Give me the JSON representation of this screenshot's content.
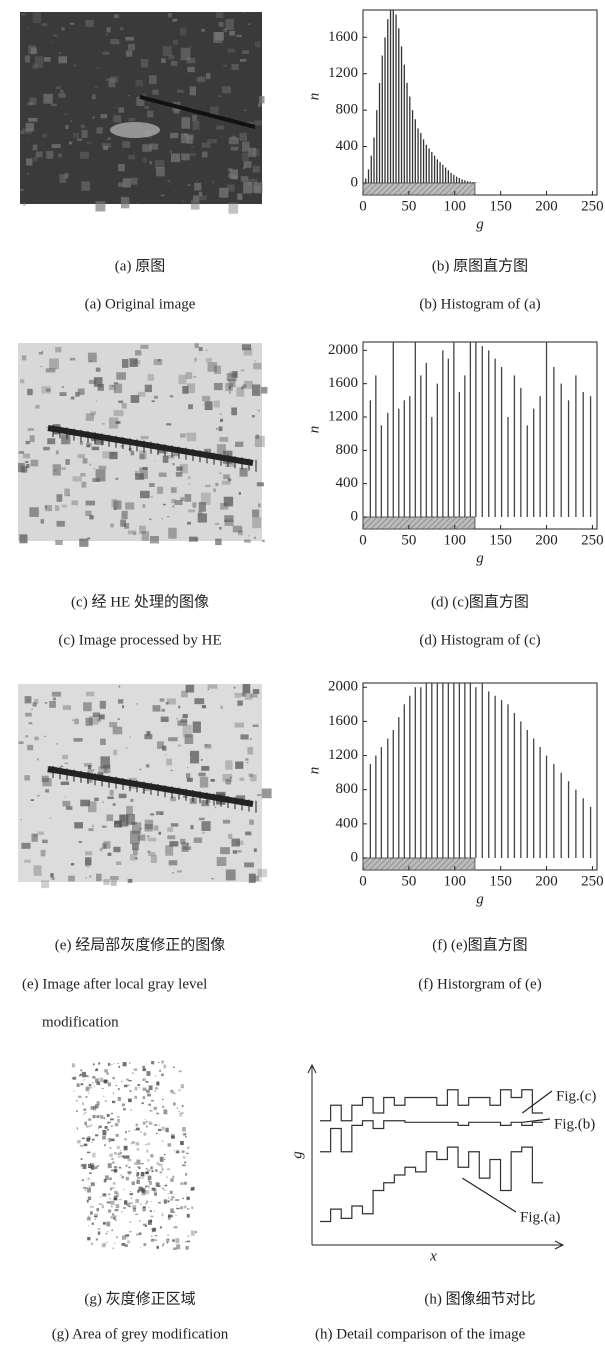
{
  "images": [
    {
      "caption_zh": "(a) 原图",
      "caption_en": "(a) Original image"
    },
    {
      "caption_zh": "(c) 经 HE 处理的图像",
      "caption_en": "(c) Image processed by HE"
    },
    {
      "caption_zh": "(e) 经局部灰度修正的图像",
      "caption_en": [
        "(e) Image after local gray level",
        "modification"
      ]
    },
    {
      "caption_zh": "(g) 灰度修正区域",
      "caption_en": "(g) Area of grey modification"
    }
  ],
  "chart_data": [
    {
      "type": "stem",
      "caption_zh": "(b) 原图直方图",
      "caption_en": "(b) Histogram of (a)",
      "xlabel": "g",
      "ylabel": "n",
      "color": "#333333",
      "x": [
        3,
        6,
        9,
        12,
        15,
        18,
        21,
        24,
        27,
        30,
        33,
        36,
        39,
        42,
        45,
        48,
        51,
        54,
        57,
        60,
        63,
        66,
        69,
        72,
        75,
        78,
        81,
        84,
        87,
        90,
        93,
        96,
        99,
        102,
        105,
        108,
        111,
        114,
        117,
        120,
        123,
        126,
        129
      ],
      "values": [
        50,
        150,
        300,
        500,
        800,
        1100,
        1400,
        1600,
        1800,
        1900,
        1900,
        1850,
        1700,
        1500,
        1300,
        1100,
        950,
        800,
        700,
        600,
        550,
        480,
        420,
        380,
        340,
        300,
        260,
        230,
        200,
        170,
        140,
        110,
        90,
        70,
        55,
        40,
        30,
        20,
        15,
        10,
        6,
        3,
        1
      ],
      "xlim": [
        0,
        255
      ],
      "ylim": [
        0,
        1900
      ],
      "xticks": [
        0,
        50,
        100,
        150,
        200,
        250
      ],
      "yticks": [
        0,
        400,
        800,
        1200,
        1600
      ],
      "span": [
        0,
        122
      ]
    },
    {
      "type": "stem",
      "caption_zh": "(d) (c)图直方图",
      "caption_en": "(d) Histogram of (c)",
      "xlabel": "g",
      "ylabel": "n",
      "color": "#444444",
      "x": [
        8,
        14,
        20,
        27,
        33,
        39,
        45,
        51,
        57,
        63,
        69,
        75,
        81,
        87,
        93,
        99,
        105,
        111,
        117,
        123,
        130,
        137,
        144,
        151,
        158,
        165,
        172,
        179,
        186,
        193,
        200,
        208,
        216,
        224,
        232,
        240,
        248
      ],
      "values": [
        1400,
        1700,
        1100,
        1250,
        2100,
        1300,
        1400,
        1450,
        2100,
        1700,
        1850,
        1200,
        1600,
        2000,
        1900,
        2100,
        1500,
        1700,
        2100,
        2100,
        2050,
        2000,
        1900,
        1800,
        1200,
        1700,
        1550,
        1100,
        1300,
        1450,
        2100,
        1800,
        1600,
        1400,
        1700,
        1500,
        1450
      ],
      "xlim": [
        0,
        255
      ],
      "ylim": [
        0,
        2100
      ],
      "xticks": [
        0,
        50,
        100,
        150,
        200,
        250
      ],
      "yticks": [
        0,
        400,
        800,
        1200,
        1600,
        2000
      ],
      "span": [
        0,
        122
      ]
    },
    {
      "type": "stem",
      "caption_zh": "(f) (e)图直方图",
      "caption_en": "(f) Historgram of (e)",
      "xlabel": "g",
      "ylabel": "n",
      "color": "#444444",
      "x": [
        8,
        14,
        20,
        27,
        33,
        39,
        45,
        51,
        57,
        63,
        69,
        75,
        81,
        87,
        93,
        99,
        105,
        111,
        117,
        123,
        130,
        137,
        144,
        151,
        158,
        165,
        172,
        179,
        186,
        193,
        200,
        208,
        216,
        224,
        232,
        240,
        248
      ],
      "values": [
        1100,
        1200,
        1300,
        1400,
        1500,
        1650,
        1800,
        1900,
        2000,
        2000,
        2050,
        2050,
        2050,
        2050,
        2050,
        2050,
        2050,
        2050,
        2050,
        2000,
        2050,
        1950,
        1900,
        1850,
        1800,
        1700,
        1600,
        1500,
        1400,
        1300,
        1200,
        1100,
        1000,
        900,
        800,
        700,
        600
      ],
      "xlim": [
        0,
        255
      ],
      "ylim": [
        0,
        2050
      ],
      "xticks": [
        0,
        50,
        100,
        150,
        200,
        250
      ],
      "yticks": [
        0,
        400,
        800,
        1200,
        1600,
        2000
      ],
      "span": [
        0,
        122
      ]
    },
    {
      "type": "step",
      "caption_zh": "(h) 图像细节对比",
      "caption_en": "(h) Detail comparison of the image",
      "xlabel": "x",
      "ylabel": "g",
      "x": [
        0,
        1,
        2,
        3,
        4,
        5,
        6,
        7,
        8,
        9,
        10,
        11,
        12,
        13,
        14,
        15,
        16,
        17,
        18,
        19,
        20
      ],
      "xlim": [
        0,
        21
      ],
      "ylim": [
        0,
        100
      ],
      "series": [
        {
          "name": "Fig.(c)",
          "color": "#333333",
          "values": [
            75,
            85,
            75,
            85,
            90,
            80,
            90,
            85,
            90,
            90,
            90,
            85,
            95,
            85,
            90,
            90,
            85,
            95,
            90,
            95,
            80
          ]
        },
        {
          "name": "Fig.(b)",
          "color": "#333333",
          "values": [
            55,
            70,
            55,
            72,
            75,
            70,
            75,
            75,
            74,
            74,
            74,
            74,
            74,
            72,
            74,
            74,
            74,
            72,
            74,
            72,
            74
          ]
        },
        {
          "name": "Fig.(a)",
          "color": "#333333",
          "values": [
            10,
            18,
            12,
            20,
            15,
            30,
            35,
            40,
            45,
            42,
            55,
            50,
            58,
            45,
            55,
            38,
            50,
            30,
            55,
            58,
            35
          ]
        }
      ]
    }
  ]
}
